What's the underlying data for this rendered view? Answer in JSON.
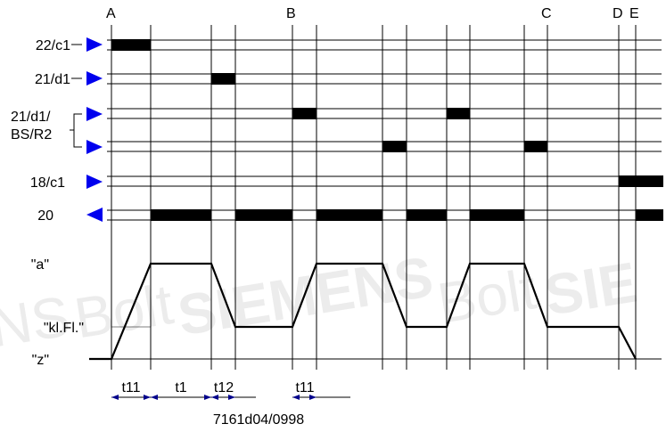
{
  "markers": {
    "A": "A",
    "B_top": "B",
    "C": "C",
    "D": "D",
    "E": "E"
  },
  "signals": {
    "s22c1": "22/c1",
    "s21d1": "21/d1",
    "s21d1bs_line1": "21/d1/",
    "s21d1bs_line2": "BS/R2",
    "s18c1": "18/c1",
    "s20": "20"
  },
  "positions": {
    "a": "\"a\"",
    "klfl": "\"kl.Fl.\"",
    "z": "\"z\""
  },
  "timing": {
    "t11_first": "t11",
    "t1": "t1",
    "t12": "t12",
    "t11_second": "t11"
  },
  "figure_id": "7161d04/0998",
  "watermark": {
    "fragment_1": "NS",
    "fragment_2": "Bolt",
    "fragment_3": "SIEMENS",
    "fragment_4": "Bolt",
    "fragment_5": "SIE"
  },
  "colors": {
    "arrow": "#0000ee",
    "line": "#000000",
    "bar": "#000000",
    "watermark": "#ececec"
  },
  "icons": {
    "input_arrow": "triangle-right-icon",
    "output_arrow": "triangle-left-icon"
  }
}
